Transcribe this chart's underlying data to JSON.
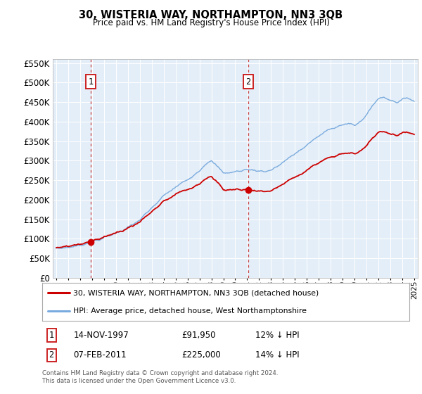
{
  "title": "30, WISTERIA WAY, NORTHAMPTON, NN3 3QB",
  "subtitle": "Price paid vs. HM Land Registry's House Price Index (HPI)",
  "legend_line1": "30, WISTERIA WAY, NORTHAMPTON, NN3 3QB (detached house)",
  "legend_line2": "HPI: Average price, detached house, West Northamptonshire",
  "annotation1_label": "1",
  "annotation1_date": "14-NOV-1997",
  "annotation1_price": "£91,950",
  "annotation1_hpi": "12% ↓ HPI",
  "annotation2_label": "2",
  "annotation2_date": "07-FEB-2011",
  "annotation2_price": "£225,000",
  "annotation2_hpi": "14% ↓ HPI",
  "footer": "Contains HM Land Registry data © Crown copyright and database right 2024.\nThis data is licensed under the Open Government Licence v3.0.",
  "ylim": [
    0,
    560000
  ],
  "yticks": [
    0,
    50000,
    100000,
    150000,
    200000,
    250000,
    300000,
    350000,
    400000,
    450000,
    500000,
    550000
  ],
  "price_color": "#cc0000",
  "hpi_color": "#7aabde",
  "vline_color": "#cc4444",
  "plot_bg": "#e4eef8",
  "grid_color": "#ffffff",
  "marker1_x": 1997.87,
  "marker1_y": 91950,
  "marker2_x": 2011.1,
  "marker2_y": 225000,
  "xmin": 1994.7,
  "xmax": 2025.3
}
